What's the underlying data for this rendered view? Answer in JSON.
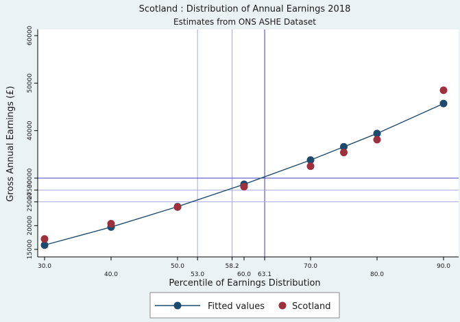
{
  "chart_data": {
    "type": "scatter",
    "title": "Scotland : Distribution of Annual Earnings 2018",
    "subtitle": "Estimates from ONS ASHE Dataset",
    "xlabel": "Percentile of Earnings Distribution",
    "ylabel": "Gross Annual Earnings (£)",
    "xlim": [
      30,
      90
    ],
    "ylim": [
      15000,
      60000
    ],
    "x_ticks": [
      {
        "value": 30,
        "label": "30.0",
        "row": 0
      },
      {
        "value": 40,
        "label": "40.0",
        "row": 1
      },
      {
        "value": 50,
        "label": "50.0",
        "row": 0
      },
      {
        "value": 53,
        "label": "53.0",
        "row": 1
      },
      {
        "value": 58.2,
        "label": "58.2",
        "row": 0
      },
      {
        "value": 60,
        "label": "60.0",
        "row": 1
      },
      {
        "value": 63.1,
        "label": "63.1",
        "row": 1
      },
      {
        "value": 70,
        "label": "70.0",
        "row": 0
      },
      {
        "value": 80,
        "label": "80.0",
        "row": 1
      },
      {
        "value": 90,
        "label": "90.0",
        "row": 0
      }
    ],
    "y_ticks": [
      {
        "value": 15000,
        "label": "15000"
      },
      {
        "value": 20000,
        "label": "20000"
      },
      {
        "value": 25000,
        "label": "25000"
      },
      {
        "value": 27500,
        "label": "27500"
      },
      {
        "value": 30000,
        "label": "30000"
      },
      {
        "value": 40000,
        "label": "40000"
      },
      {
        "value": 50000,
        "label": "50000"
      },
      {
        "value": 60000,
        "label": "60000"
      }
    ],
    "reference_lines": {
      "vertical": [
        {
          "value": 53.0,
          "color": "#a8a8e0"
        },
        {
          "value": 58.2,
          "color": "#a8a8e0"
        },
        {
          "value": 63.1,
          "color": "#3d3dc8"
        }
      ],
      "horizontal": [
        {
          "value": 25000,
          "color": "#a8a8e0"
        },
        {
          "value": 27500,
          "color": "#a8a8e0"
        },
        {
          "value": 30000,
          "color": "#3d3dc8"
        }
      ]
    },
    "series": [
      {
        "name": "Fitted values",
        "kind": "line-with-markers",
        "color": "#1c4a6e",
        "x": [
          30,
          40,
          50,
          60,
          70,
          75,
          80,
          90
        ],
        "y": [
          15900,
          19700,
          24000,
          28700,
          33800,
          36600,
          39400,
          45700
        ]
      },
      {
        "name": "Scotland",
        "kind": "markers",
        "color": "#9e2f3c",
        "x": [
          30,
          40,
          50,
          60,
          70,
          75,
          80,
          90
        ],
        "y": [
          17200,
          20400,
          23900,
          28200,
          32500,
          35400,
          38100,
          48500
        ]
      }
    ],
    "grid": false,
    "legend_position": "bottom"
  },
  "colors": {
    "outer_background": "#eaf2f3",
    "plot_background": "#ffffff",
    "axis": "#000000"
  }
}
